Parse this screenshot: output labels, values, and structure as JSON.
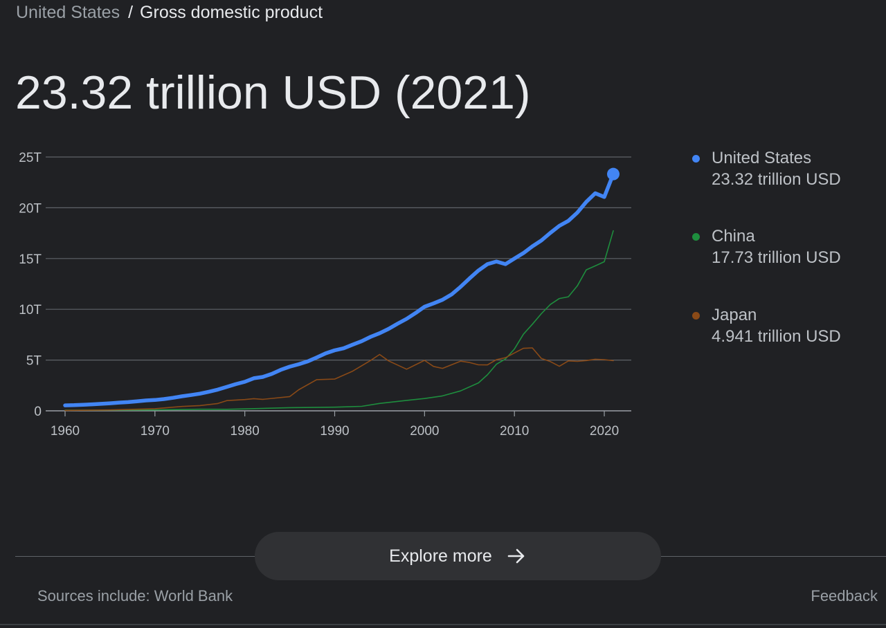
{
  "breadcrumb": {
    "country": "United States",
    "separator": "/",
    "topic": "Gross domestic product"
  },
  "headline": "23.32 trillion USD (2021)",
  "legend": [
    {
      "name": "United States",
      "value": "23.32 trillion USD",
      "color": "#4285f4"
    },
    {
      "name": "China",
      "value": "17.73 trillion USD",
      "color": "#1e8e3e"
    },
    {
      "name": "Japan",
      "value": "4.941 trillion USD",
      "color": "#8a4a17"
    }
  ],
  "explore": {
    "label": "Explore more",
    "icon": "arrow-right-icon"
  },
  "footer": {
    "sources": "Sources include: World Bank",
    "feedback": "Feedback"
  },
  "chart_data": {
    "type": "line",
    "title": "",
    "xlabel": "",
    "ylabel": "",
    "xlim": [
      1960,
      2021
    ],
    "ylim": [
      0,
      25
    ],
    "y_ticks": [
      0,
      5,
      10,
      15,
      20,
      25
    ],
    "y_tick_labels": [
      "0",
      "5T",
      "10T",
      "15T",
      "20T",
      "25T"
    ],
    "x_ticks": [
      1960,
      1970,
      1980,
      1990,
      2000,
      2010,
      2020
    ],
    "x_tick_labels": [
      "1960",
      "1970",
      "1980",
      "1990",
      "2000",
      "2010",
      "2020"
    ],
    "grid": true,
    "legend_position": "right",
    "highlight": {
      "series": "United States",
      "x": 2021,
      "y": 23.32
    },
    "series": [
      {
        "name": "United States",
        "color": "#4285f4",
        "x": [
          1960,
          1961,
          1962,
          1963,
          1964,
          1965,
          1966,
          1967,
          1968,
          1969,
          1970,
          1971,
          1972,
          1973,
          1974,
          1975,
          1976,
          1977,
          1978,
          1979,
          1980,
          1981,
          1982,
          1983,
          1984,
          1985,
          1986,
          1987,
          1988,
          1989,
          1990,
          1991,
          1992,
          1993,
          1994,
          1995,
          1996,
          1997,
          1998,
          1999,
          2000,
          2001,
          2002,
          2003,
          2004,
          2005,
          2006,
          2007,
          2008,
          2009,
          2010,
          2011,
          2012,
          2013,
          2014,
          2015,
          2016,
          2017,
          2018,
          2019,
          2020,
          2021
        ],
        "y": [
          0.54,
          0.56,
          0.6,
          0.64,
          0.69,
          0.74,
          0.81,
          0.86,
          0.94,
          1.02,
          1.07,
          1.16,
          1.28,
          1.43,
          1.55,
          1.69,
          1.88,
          2.09,
          2.36,
          2.63,
          2.86,
          3.21,
          3.34,
          3.64,
          4.04,
          4.35,
          4.59,
          4.87,
          5.25,
          5.66,
          5.96,
          6.16,
          6.52,
          6.86,
          7.29,
          7.64,
          8.07,
          8.58,
          9.06,
          9.63,
          10.25,
          10.58,
          10.94,
          11.46,
          12.21,
          13.04,
          13.82,
          14.45,
          14.71,
          14.45,
          15.0,
          15.54,
          16.2,
          16.78,
          17.53,
          18.22,
          18.71,
          19.52,
          20.58,
          21.43,
          21.06,
          23.32
        ]
      },
      {
        "name": "China",
        "color": "#1e8e3e",
        "x": [
          1960,
          1965,
          1970,
          1975,
          1978,
          1980,
          1985,
          1990,
          1993,
          1995,
          1998,
          2000,
          2002,
          2004,
          2006,
          2007,
          2008,
          2009,
          2010,
          2011,
          2012,
          2013,
          2014,
          2015,
          2016,
          2017,
          2018,
          2019,
          2020,
          2021
        ],
        "y": [
          0.06,
          0.07,
          0.09,
          0.16,
          0.15,
          0.19,
          0.31,
          0.36,
          0.44,
          0.73,
          1.03,
          1.21,
          1.47,
          1.96,
          2.75,
          3.55,
          4.59,
          5.1,
          6.09,
          7.55,
          8.53,
          9.57,
          10.48,
          11.06,
          11.23,
          12.31,
          13.89,
          14.28,
          14.69,
          17.73
        ]
      },
      {
        "name": "Japan",
        "color": "#8a4a17",
        "x": [
          1960,
          1965,
          1970,
          1973,
          1975,
          1977,
          1978,
          1980,
          1981,
          1982,
          1985,
          1986,
          1988,
          1990,
          1992,
          1994,
          1995,
          1996,
          1998,
          2000,
          2001,
          2002,
          2004,
          2005,
          2006,
          2007,
          2008,
          2009,
          2010,
          2011,
          2012,
          2013,
          2014,
          2015,
          2016,
          2017,
          2018,
          2019,
          2020,
          2021
        ],
        "y": [
          0.04,
          0.09,
          0.21,
          0.43,
          0.52,
          0.72,
          1.01,
          1.11,
          1.2,
          1.13,
          1.4,
          2.08,
          3.07,
          3.13,
          3.91,
          4.96,
          5.55,
          4.92,
          4.1,
          4.97,
          4.37,
          4.18,
          4.89,
          4.76,
          4.53,
          4.52,
          5.04,
          5.23,
          5.7,
          6.16,
          6.2,
          5.16,
          4.85,
          4.39,
          4.92,
          4.87,
          4.95,
          5.08,
          5.04,
          4.94
        ]
      }
    ]
  }
}
